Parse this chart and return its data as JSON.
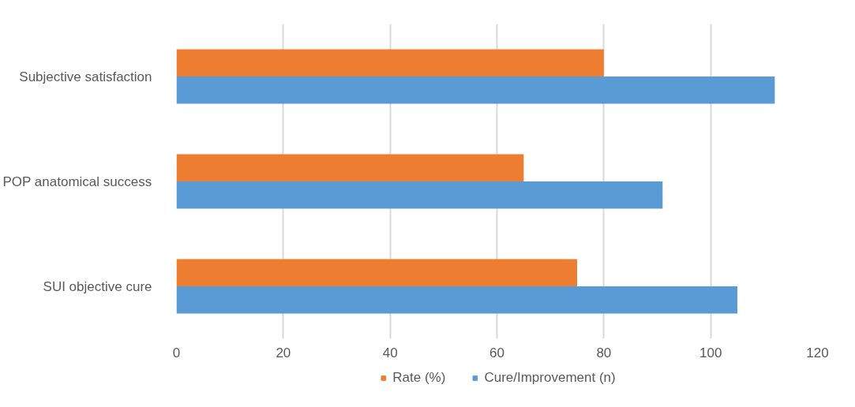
{
  "chart_data": {
    "type": "bar",
    "orientation": "horizontal",
    "categories": [
      "Subjective satisfaction",
      "POP anatomical success",
      "SUI objective cure"
    ],
    "series": [
      {
        "name": "Rate (%)",
        "color": "#ed7d31",
        "values": [
          80,
          65,
          75
        ]
      },
      {
        "name": "Cure/Improvement (n)",
        "color": "#5b9bd5",
        "values": [
          112,
          91,
          105
        ]
      }
    ],
    "xlim": [
      0,
      120
    ],
    "xticks": [
      0,
      20,
      40,
      60,
      80,
      100,
      120
    ],
    "grid": "x",
    "legend": "bottom"
  }
}
